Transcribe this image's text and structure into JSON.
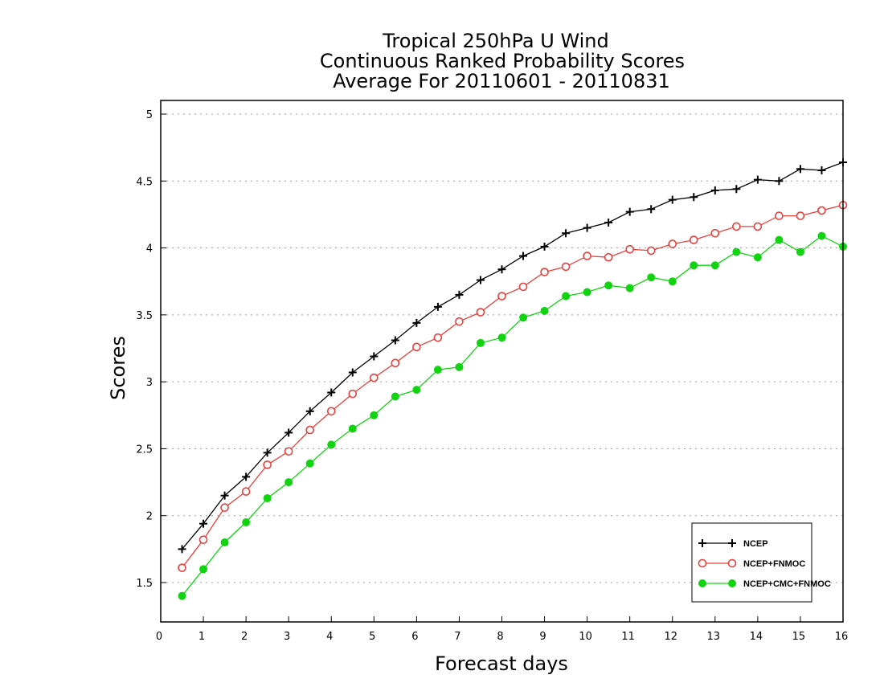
{
  "chart_data": {
    "type": "line",
    "title": [
      "Tropical 250hPa U Wind",
      "Continuous Ranked Probability Scores",
      "Average For 20110601 - 20110831"
    ],
    "xlabel": "Forecast days",
    "ylabel": "Scores",
    "xlim": [
      0,
      16
    ],
    "ylim": [
      1.2,
      5.1
    ],
    "xticks": [
      "0",
      "1",
      "2",
      "3",
      "4",
      "5",
      "6",
      "7",
      "8",
      "9",
      "10",
      "11",
      "12",
      "13",
      "14",
      "15",
      "16"
    ],
    "yticks": [
      "1.5",
      "2",
      "2.5",
      "3",
      "3.5",
      "4",
      "4.5",
      "5"
    ],
    "grid": "horizontal dotted",
    "legend_position": "bottom-right",
    "x": [
      0.5,
      1,
      1.5,
      2,
      2.5,
      3,
      3.5,
      4,
      4.5,
      5,
      5.5,
      6,
      6.5,
      7,
      7.5,
      8,
      8.5,
      9,
      9.5,
      10,
      10.5,
      11,
      11.5,
      12,
      12.5,
      13,
      13.5,
      14,
      14.5,
      15,
      15.5,
      16
    ],
    "series": [
      {
        "name": "NCEP",
        "color": "#000000",
        "marker": "plus",
        "values": [
          1.75,
          1.94,
          2.15,
          2.29,
          2.47,
          2.62,
          2.78,
          2.92,
          3.07,
          3.19,
          3.31,
          3.44,
          3.56,
          3.65,
          3.76,
          3.84,
          3.94,
          4.01,
          4.11,
          4.15,
          4.19,
          4.27,
          4.29,
          4.36,
          4.38,
          4.43,
          4.44,
          4.51,
          4.5,
          4.59,
          4.58,
          4.64
        ]
      },
      {
        "name": "NCEP+FNMOC",
        "color": "#e8403c",
        "marker": "open-circle",
        "values": [
          1.61,
          1.82,
          2.06,
          2.18,
          2.38,
          2.48,
          2.64,
          2.78,
          2.91,
          3.03,
          3.14,
          3.26,
          3.33,
          3.45,
          3.52,
          3.64,
          3.71,
          3.82,
          3.86,
          3.94,
          3.93,
          3.99,
          3.98,
          4.03,
          4.06,
          4.11,
          4.16,
          4.16,
          4.24,
          4.24,
          4.28,
          4.32
        ]
      },
      {
        "name": "NCEP+CMC+FNMOC",
        "color": "#11d411",
        "marker": "filled-circle",
        "values": [
          1.4,
          1.6,
          1.8,
          1.95,
          2.13,
          2.25,
          2.39,
          2.53,
          2.65,
          2.75,
          2.89,
          2.94,
          3.09,
          3.11,
          3.29,
          3.33,
          3.48,
          3.53,
          3.64,
          3.67,
          3.72,
          3.7,
          3.78,
          3.75,
          3.87,
          3.87,
          3.97,
          3.93,
          4.06,
          3.97,
          4.09,
          4.01
        ]
      }
    ]
  }
}
